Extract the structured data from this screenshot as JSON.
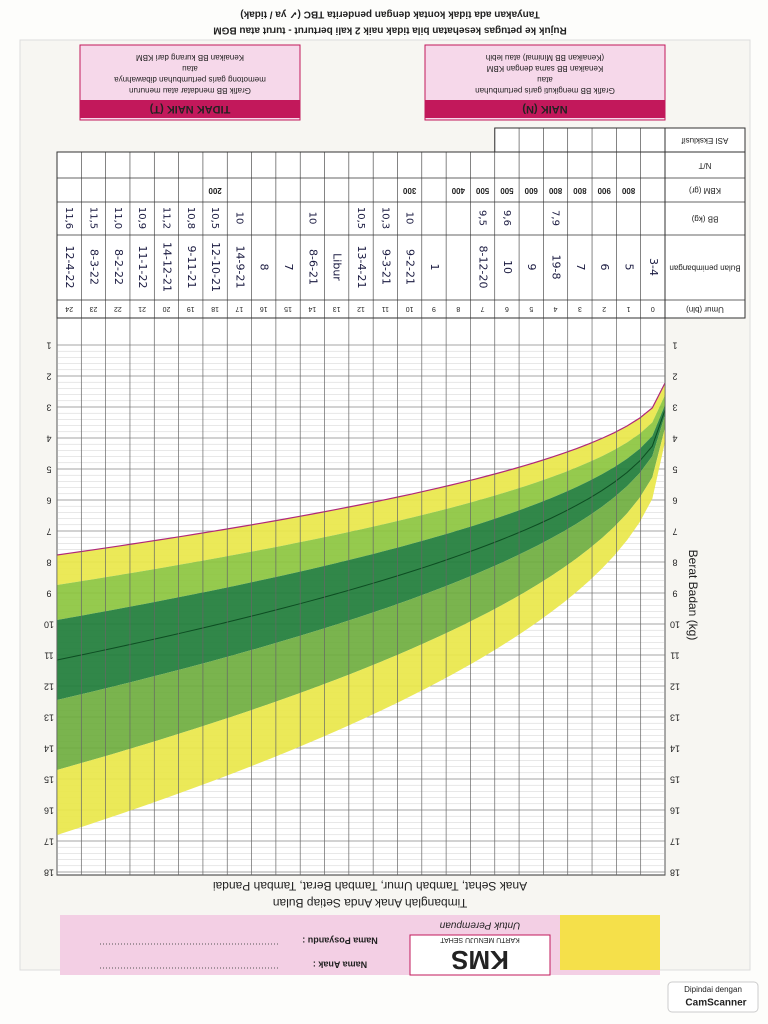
{
  "notes": [
    "Rujuk ke petugas kesehatan bila tidak naik 2 kali berturut - turut atau BGM",
    "Tanyakan ada tidak kontak dengan penderita TBC (✓ ya / tidak)"
  ],
  "legend": {
    "naik": {
      "title": "NAIK (N)",
      "lines": [
        "Grafik BB mengikuti garis pertumbuhan",
        "atau",
        "Kenaikan BB sama dengan KBM",
        "(Kenaikan BB Minimal) atau lebih"
      ]
    },
    "tidak_naik": {
      "title": "TIDAK NAIK (T)",
      "lines": [
        "Grafik BB mendatar atau menurun",
        "memotong garis pertumbuhan dibawahnya",
        "atau",
        "Kenaikan BB kurang dari KBM"
      ]
    }
  },
  "table": {
    "row_labels": {
      "asi": "ASI Eksklusif",
      "nt": "N/T",
      "kbm": "KBM (gr)",
      "bb": "BB (kg)",
      "bulan": "Bulan penimbangan",
      "umur": "Umur (bln)"
    },
    "umur": [
      0,
      1,
      2,
      3,
      4,
      5,
      6,
      7,
      8,
      9,
      10,
      11,
      12,
      13,
      14,
      15,
      16,
      17,
      18,
      19,
      20,
      21,
      22,
      23,
      24
    ],
    "kbm": [
      800,
      900,
      800,
      800,
      600,
      500,
      500,
      400,
      300,
      200
    ],
    "columns": [
      {
        "bulan": "3-4"
      },
      {
        "bulan": "5"
      },
      {
        "bulan": "6"
      },
      {
        "bulan": "7"
      },
      {
        "bulan": "19-8",
        "bb": "7,9"
      },
      {
        "bulan": "9"
      },
      {
        "bulan": "10",
        "bb": "9,6"
      },
      {
        "bulan": "8-12-20",
        "bb": "9,5"
      },
      {},
      {
        "bulan": "1"
      },
      {
        "bulan": "9-2-21",
        "bb": "10"
      },
      {
        "bulan": "9-3-21",
        "bb": "10,3"
      },
      {
        "bulan": "13-4-21",
        "bb": "10,5"
      },
      {
        "bulan": "Libur"
      },
      {
        "bulan": "8-6-21",
        "bb": "10"
      },
      {
        "bulan": "7"
      },
      {
        "bulan": "8"
      },
      {
        "bulan": "14-9-21",
        "bb": "10"
      },
      {
        "bulan": "12-10-21",
        "bb": "10,5"
      },
      {
        "bulan": "9-11-21",
        "bb": "10,8"
      },
      {
        "bulan": "14-12-21",
        "bb": "11,2"
      },
      {
        "bulan": "11-1-22",
        "bb": "10,9"
      },
      {
        "bulan": "8-2-22",
        "bb": "11,0"
      },
      {
        "bulan": "8-3-22",
        "bb": "11,5"
      },
      {
        "bulan": "12-4-22",
        "bb": "11,6"
      }
    ]
  },
  "chart": {
    "y_label": "Berat Badan (kg)",
    "y_ticks": [
      1,
      2,
      3,
      4,
      5,
      6,
      7,
      8,
      9,
      10,
      11,
      12,
      13,
      14,
      15,
      16,
      17,
      18
    ]
  },
  "slogan": [
    "Timbanglah Anak Anda Setiap Bulan",
    "Anak Sehat, Tambah Umur, Tambah Berat, Tambah Pandai"
  ],
  "header": {
    "brand": "KMS",
    "brand_sub": "KARTU MENUJU SEHAT",
    "for": "Untuk Perempuan",
    "fields": [
      "Nama Anak :",
      "Nama Posyandu :"
    ]
  },
  "scanner": {
    "caption": "Dipindai dengan",
    "app": "CamScanner"
  }
}
